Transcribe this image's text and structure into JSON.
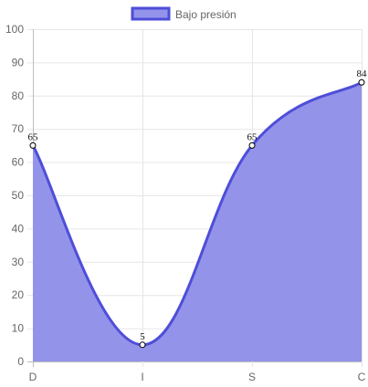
{
  "chart_data": {
    "type": "area",
    "categories": [
      "D",
      "I",
      "S",
      "C"
    ],
    "series": [
      {
        "name": "Bajo presión",
        "values": [
          65,
          5,
          65,
          84
        ]
      }
    ],
    "ylim": [
      0,
      100
    ],
    "y_ticks": [
      "0",
      "10",
      "20",
      "30",
      "40",
      "50",
      "60",
      "70",
      "80",
      "90",
      "100"
    ],
    "grid": true,
    "legend_position": "top",
    "colors": {
      "line": "#4e4ed9",
      "fill": "#9393ea",
      "grid": "#e6e6e6",
      "axis": "#bdbdbd",
      "point_fill": "#ffffff",
      "point_stroke": "#000000"
    }
  }
}
